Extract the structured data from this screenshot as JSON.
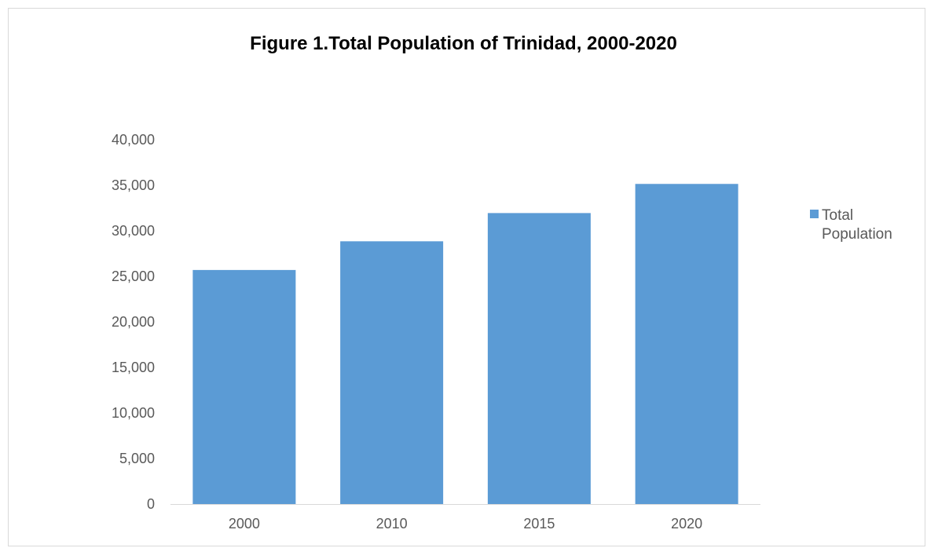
{
  "chart_data": {
    "type": "bar",
    "title": "Figure 1.Total Population of Trinidad, 2000-2020",
    "categories": [
      "2000",
      "2010",
      "2015",
      "2020"
    ],
    "series": [
      {
        "name": "Total Population",
        "values": [
          25700,
          28850,
          31950,
          35150
        ],
        "color": "#5b9bd5"
      }
    ],
    "ylim": [
      0,
      40000
    ],
    "y_ticks": [
      0,
      5000,
      10000,
      15000,
      20000,
      25000,
      30000,
      35000,
      40000
    ],
    "y_tick_labels": [
      "0",
      "5,000",
      "10,000",
      "15,000",
      "20,000",
      "25,000",
      "30,000",
      "35,000",
      "40,000"
    ],
    "grid": false,
    "legend": {
      "position": "right",
      "lines": [
        "Total",
        "Population"
      ]
    }
  }
}
